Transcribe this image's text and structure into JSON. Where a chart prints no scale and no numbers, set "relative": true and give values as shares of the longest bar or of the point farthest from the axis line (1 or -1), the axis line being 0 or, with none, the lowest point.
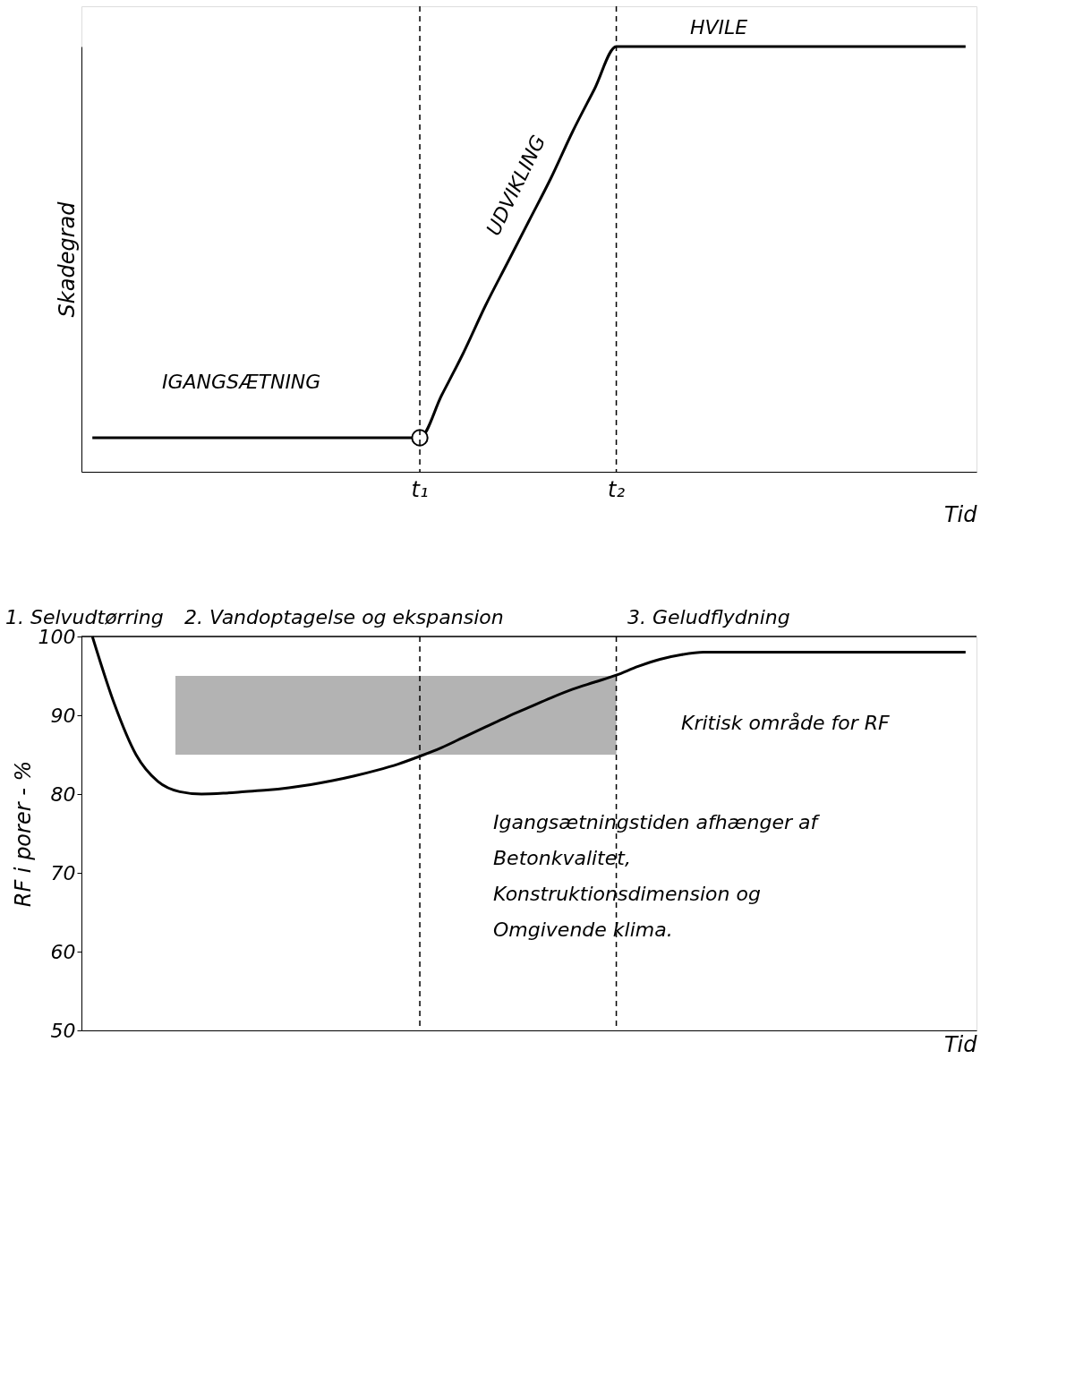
{
  "chart_data": [
    {
      "type": "line",
      "relative": true,
      "xlabel": "Tid",
      "ylabel": "Skadegrad",
      "tick_labels": "x",
      "categories": [
        null,
        null,
        null,
        null,
        null,
        null,
        null,
        null,
        null,
        null,
        null,
        null,
        null,
        null,
        null,
        "t₁",
        null,
        null,
        null,
        null,
        null,
        null,
        null,
        null,
        "t₂",
        null,
        null,
        null,
        null,
        null,
        null,
        null,
        null,
        null,
        null,
        null,
        null,
        null,
        null,
        null,
        null
      ],
      "series": [
        {
          "type": "line",
          "color": "#000000",
          "values": [
            0.08,
            0.08,
            0.08,
            0.08,
            0.08,
            0.08,
            0.08,
            0.08,
            0.08,
            0.08,
            0.08,
            0.08,
            0.08,
            0.08,
            0.08,
            0.08,
            0.18,
            0.28,
            0.39,
            0.49,
            0.59,
            0.69,
            0.8,
            0.9,
            1,
            1,
            1,
            1,
            1,
            1,
            1,
            1,
            1,
            1,
            1,
            1,
            1,
            1,
            1,
            1,
            1
          ]
        },
        {
          "type": "scatter",
          "color": "#000000",
          "marker": "circle",
          "values": [
            null,
            null,
            null,
            null,
            null,
            null,
            null,
            null,
            null,
            null,
            null,
            null,
            null,
            null,
            null,
            0.08,
            null,
            null,
            null,
            null,
            null,
            null,
            null,
            null,
            null,
            null,
            null,
            null,
            null,
            null,
            null,
            null,
            null,
            null,
            null,
            null,
            null,
            null,
            null,
            null,
            null
          ]
        }
      ],
      "ref_lines": [
        {
          "axis": "x",
          "value": "t₁",
          "line_style": "dashed"
        },
        {
          "axis": "x",
          "value": "t₂",
          "line_style": "dashed"
        }
      ],
      "annotations": [
        "IGANGSÆTNING",
        "UDVIKLING",
        "HVILE"
      ]
    },
    {
      "type": "line",
      "xlabel": "Tid",
      "ylabel": "RF i porer - %",
      "ylim": [
        50,
        100
      ],
      "yticks": [
        50,
        60,
        70,
        80,
        90,
        100
      ],
      "tick_labels": "y",
      "categories": [
        null,
        null,
        null,
        null,
        null,
        null,
        null,
        null,
        null,
        null,
        null,
        null,
        null,
        null,
        null,
        "t₁",
        null,
        null,
        null,
        null,
        null,
        null,
        null,
        null,
        "t₂",
        null,
        null,
        null,
        null,
        null,
        null,
        null,
        null,
        null,
        null,
        null,
        null,
        null,
        null,
        null,
        null
      ],
      "series": [
        {
          "type": "line",
          "color": "#000000",
          "values": [
            100,
            91.5,
            85,
            81.6,
            80.3,
            80,
            80.1,
            80.3,
            80.5,
            80.8,
            81.2,
            81.7,
            82.3,
            83,
            83.8,
            84.8,
            85.9,
            87.2,
            88.5,
            89.8,
            91,
            92.2,
            93.3,
            94.2,
            95.1,
            96.2,
            97.1,
            97.7,
            98,
            98,
            98,
            98,
            98,
            98,
            98,
            98,
            98,
            98,
            98,
            98,
            98
          ]
        }
      ],
      "ref_lines": [
        {
          "axis": "x",
          "value": "t₁",
          "line_style": "dashed"
        },
        {
          "axis": "x",
          "value": "t₂",
          "line_style": "dashed"
        },
        {
          "axis": "y",
          "value": 100,
          "line_style": "solid"
        }
      ],
      "bands": [
        {
          "axis": "y",
          "from": 85,
          "to": 95,
          "color": "#b3b3b3"
        }
      ],
      "annotations": [
        "1. Selvudtørring",
        "2. Vandoptagelse og ekspansion",
        "3. Geludflydning",
        "Kritisk område for RF",
        "Igangsætningstiden afhænger af\nBetonkvalitet,\nKonstruktionsdimension og\nOmgivende klima."
      ]
    }
  ]
}
